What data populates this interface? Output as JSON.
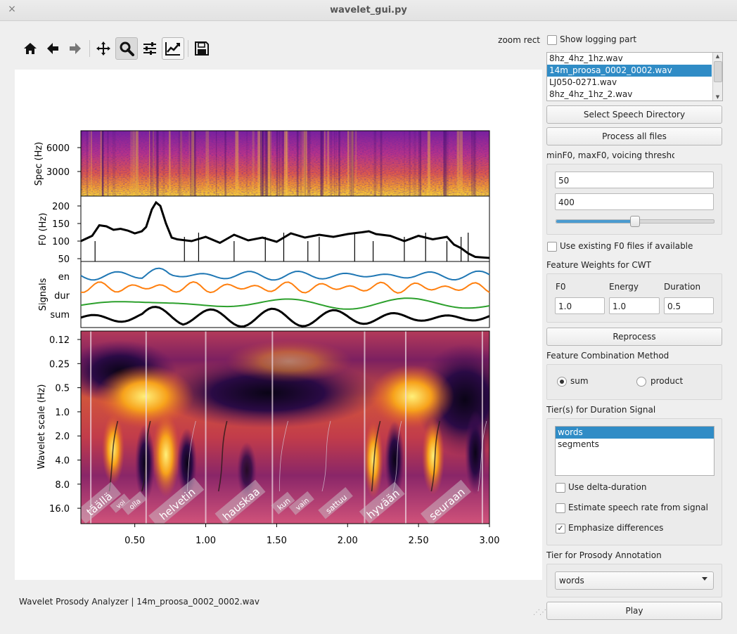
{
  "window": {
    "title": "wavelet_gui.py",
    "close_glyph": "×"
  },
  "toolbar": {
    "buttons": [
      {
        "id": "home",
        "icon": "home-icon"
      },
      {
        "id": "back",
        "icon": "arrow-left-icon"
      },
      {
        "id": "forward",
        "icon": "arrow-right-icon"
      },
      {
        "id": "pan",
        "icon": "move-icon"
      },
      {
        "id": "zoom",
        "icon": "magnifier-icon",
        "active": true
      },
      {
        "id": "subplots",
        "icon": "sliders-icon"
      },
      {
        "id": "customize",
        "icon": "line-chart-icon"
      },
      {
        "id": "save",
        "icon": "floppy-disk-icon"
      }
    ],
    "mode_label": "zoom rect"
  },
  "status_text": "Wavelet Prosody Analyzer | 14m_proosa_0002_0002.wav",
  "right_panel": {
    "show_logging": {
      "label": "Show logging part",
      "checked": false
    },
    "files": [
      "8hz_4hz_1hz.wav",
      "14m_proosa_0002_0002.wav",
      "LJ050-0271.wav",
      "8hz_4hz_1hz_2.wav"
    ],
    "files_selected": 1,
    "select_dir_button": "Select Speech Directory",
    "process_all_button": "Process all files",
    "f0_group_label": "minF0, maxF0, voicing thresholc",
    "min_f0": "50",
    "max_f0": "400",
    "voicing_threshold_fraction": 0.5,
    "use_existing_f0": {
      "label": "Use existing F0 files if available",
      "checked": false
    },
    "weights_label": "Feature Weights for CWT",
    "weights": [
      {
        "label": "F0",
        "value": "1.0"
      },
      {
        "label": "Energy",
        "value": "1.0"
      },
      {
        "label": "Duration",
        "value": "0.5"
      }
    ],
    "reprocess_button": "Reprocess",
    "combination_label": "Feature Combination Method",
    "combination_options": [
      {
        "label": "sum",
        "checked": true
      },
      {
        "label": "product",
        "checked": false
      }
    ],
    "duration_tier_label": "Tier(s) for Duration Signal",
    "duration_tiers": [
      "words",
      "segments"
    ],
    "duration_tiers_selected": 0,
    "use_delta_duration": {
      "label": "Use delta-duration",
      "checked": false
    },
    "estimate_rate": {
      "label": "Estimate speech rate from signal",
      "checked": false
    },
    "emphasize_diff": {
      "label": "Emphasize differences",
      "checked": true
    },
    "check_mark": "✓",
    "prosody_tier_label": "Tier for Prosody Annotation",
    "prosody_tier_value": "words",
    "play_button": "Play"
  },
  "chart_data": {
    "type": "line",
    "x_range": [
      0.12,
      3.0
    ],
    "x_ticks": [
      "0.50",
      "1.00",
      "1.50",
      "2.00",
      "2.50",
      "3.00"
    ],
    "panels": [
      {
        "name": "spectrogram",
        "ylabel": "Spec (Hz)",
        "yticks": [
          "6000",
          "3000"
        ],
        "colormap": "plasma"
      },
      {
        "name": "f0",
        "ylabel": "F0 (Hz)",
        "yticks": [
          "200",
          "150",
          "100",
          "50"
        ],
        "ylim": [
          50,
          220
        ],
        "series": [
          {
            "color": "#000000",
            "x": [
              0.12,
              0.2,
              0.25,
              0.3,
              0.35,
              0.4,
              0.45,
              0.5,
              0.55,
              0.58,
              0.62,
              0.65,
              0.68,
              0.72,
              0.76,
              0.8,
              0.9,
              1.0,
              1.1,
              1.2,
              1.3,
              1.4,
              1.5,
              1.6,
              1.7,
              1.8,
              1.9,
              2.0,
              2.1,
              2.15,
              2.2,
              2.3,
              2.4,
              2.5,
              2.6,
              2.7,
              2.75,
              2.8,
              2.85,
              2.9,
              3.0
            ],
            "y": [
              100,
              115,
              145,
              142,
              132,
              135,
              130,
              122,
              128,
              140,
              190,
              210,
              200,
              150,
              110,
              105,
              100,
              112,
              95,
              118,
              102,
              110,
              98,
              122,
              110,
              118,
              112,
              120,
              125,
              128,
              120,
              115,
              100,
              115,
              105,
              112,
              90,
              80,
              65,
              55,
              52
            ]
          }
        ]
      },
      {
        "name": "signals",
        "ylabel": "Signals",
        "yticks": [
          "en",
          "dur",
          "sum"
        ],
        "series": [
          {
            "name": "en",
            "color": "#1f77b4"
          },
          {
            "name": "dur",
            "color": "#ff7f0e"
          },
          {
            "name": "",
            "color": "#2ca02c"
          },
          {
            "name": "sum",
            "color": "#000000"
          }
        ]
      },
      {
        "name": "wavelet",
        "ylabel": "Wavelet scale (Hz)",
        "yticks": [
          "0.12",
          "0.25",
          "0.5",
          "1.0",
          "2.0",
          "4.0",
          "8.0",
          "16.0"
        ],
        "colormap": "inferno",
        "word_boundaries": [
          0.19,
          0.58,
          1.0,
          1.47,
          2.12,
          2.41,
          2.95
        ],
        "words": [
          {
            "text": "täällä",
            "x": 0.25
          },
          {
            "text": "voi",
            "x": 0.4
          },
          {
            "text": "olla",
            "x": 0.5
          },
          {
            "text": "helvetin",
            "x": 0.8
          },
          {
            "text": "hauskaa",
            "x": 1.25
          },
          {
            "text": "kun",
            "x": 1.55
          },
          {
            "text": "vain",
            "x": 1.68
          },
          {
            "text": "sattuu",
            "x": 1.92
          },
          {
            "text": "hyvään",
            "x": 2.25
          },
          {
            "text": "seuraan",
            "x": 2.7
          }
        ]
      }
    ]
  }
}
